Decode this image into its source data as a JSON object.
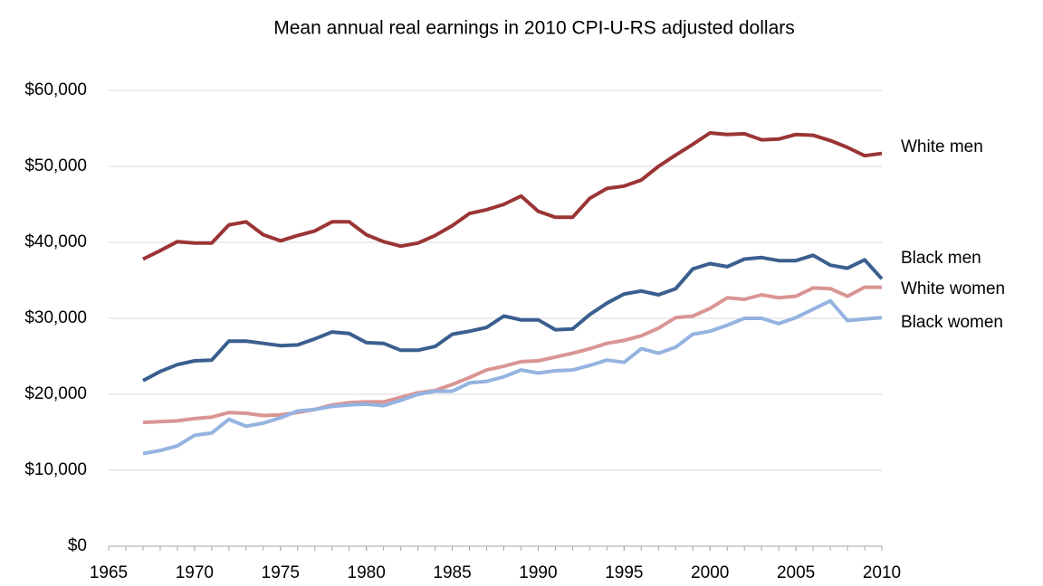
{
  "chart_data": {
    "type": "line",
    "title": "Mean annual real earnings in 2010 CPI-U-RS adjusted dollars",
    "x": [
      1967,
      1968,
      1969,
      1970,
      1971,
      1972,
      1973,
      1974,
      1975,
      1976,
      1977,
      1978,
      1979,
      1980,
      1981,
      1982,
      1983,
      1984,
      1985,
      1986,
      1987,
      1988,
      1989,
      1990,
      1991,
      1992,
      1993,
      1994,
      1995,
      1996,
      1997,
      1998,
      1999,
      2000,
      2001,
      2002,
      2003,
      2004,
      2005,
      2006,
      2007,
      2008,
      2009,
      2010
    ],
    "series": [
      {
        "name": "White men",
        "color": "#9b3535",
        "values": [
          37800,
          38900,
          40100,
          39900,
          39900,
          42300,
          42700,
          41000,
          40200,
          40900,
          41500,
          42700,
          42700,
          41000,
          40100,
          39500,
          39900,
          40900,
          42200,
          43800,
          44300,
          45000,
          46100,
          44100,
          43300,
          43300,
          45800,
          47100,
          47400,
          48200,
          50000,
          51500,
          52900,
          54400,
          54200,
          54300,
          53500,
          53600,
          54200,
          54100,
          53400,
          52500,
          51400,
          51700
        ]
      },
      {
        "name": "Black men",
        "color": "#3a5f8f",
        "values": [
          21800,
          23000,
          23900,
          24400,
          24500,
          27000,
          27000,
          26700,
          26400,
          26500,
          27300,
          28200,
          28000,
          26800,
          26700,
          25800,
          25800,
          26300,
          27900,
          28300,
          28800,
          30300,
          29800,
          29800,
          28500,
          28600,
          30500,
          32000,
          33200,
          33600,
          33100,
          33900,
          36500,
          37200,
          36800,
          37800,
          38000,
          37600,
          37600,
          38300,
          37000,
          36600,
          37700,
          35200
        ]
      },
      {
        "name": "White women",
        "color": "#d99594",
        "values": [
          16300,
          16400,
          16500,
          16800,
          17000,
          17600,
          17500,
          17200,
          17300,
          17600,
          18000,
          18600,
          18900,
          19000,
          19000,
          19600,
          20200,
          20500,
          21300,
          22200,
          23200,
          23700,
          24300,
          24400,
          24900,
          25400,
          26000,
          26700,
          27100,
          27700,
          28700,
          30100,
          30300,
          31300,
          32700,
          32500,
          33100,
          32700,
          32900,
          34000,
          33900,
          32900,
          34100,
          34100
        ]
      },
      {
        "name": "Black women",
        "color": "#95b3e0",
        "values": [
          12200,
          12600,
          13200,
          14600,
          14900,
          16700,
          15800,
          16200,
          16900,
          17800,
          18000,
          18400,
          18600,
          18700,
          18500,
          19200,
          20000,
          20400,
          20400,
          21500,
          21700,
          22300,
          23200,
          22800,
          23100,
          23200,
          23800,
          24500,
          24200,
          26000,
          25400,
          26200,
          27900,
          28300,
          29100,
          30000,
          30000,
          29300,
          30100,
          31200,
          32300,
          29700,
          29900,
          30100
        ]
      }
    ],
    "xlim": [
      1965,
      2010
    ],
    "xticks": [
      1965,
      1970,
      1975,
      1980,
      1985,
      1990,
      1995,
      2000,
      2005,
      2010
    ],
    "ylim": [
      0,
      60000
    ],
    "yticks": [
      {
        "value": 0,
        "label": "$0"
      },
      {
        "value": 10000,
        "label": "$10,000"
      },
      {
        "value": 20000,
        "label": "$20,000"
      },
      {
        "value": 30000,
        "label": "$30,000"
      },
      {
        "value": 40000,
        "label": "$40,000"
      },
      {
        "value": 50000,
        "label": "$50,000"
      },
      {
        "value": 60000,
        "label": "$60,000"
      }
    ],
    "grid": true
  }
}
